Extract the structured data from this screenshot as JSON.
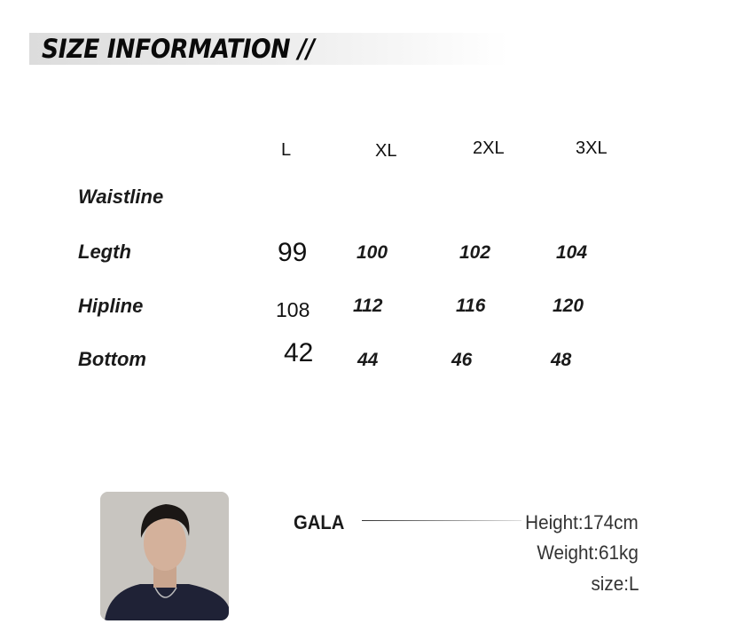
{
  "title": "SIZE INFORMATION  //",
  "size_table": {
    "columns": [
      "L",
      "XL",
      "2XL",
      "3XL"
    ],
    "rows": [
      {
        "label": "Waistline",
        "values": []
      },
      {
        "label": "Legth",
        "values": [
          "99",
          "100",
          "102",
          "104"
        ]
      },
      {
        "label": "Hipline",
        "values": [
          "108",
          "112",
          "116",
          "120"
        ]
      },
      {
        "label": "Bottom",
        "values": [
          "42",
          "44",
          "46",
          "48"
        ]
      }
    ]
  },
  "model": {
    "name": "GALA",
    "height": "Height:174cm",
    "weight": "Weight:61kg",
    "size": "size:L"
  }
}
